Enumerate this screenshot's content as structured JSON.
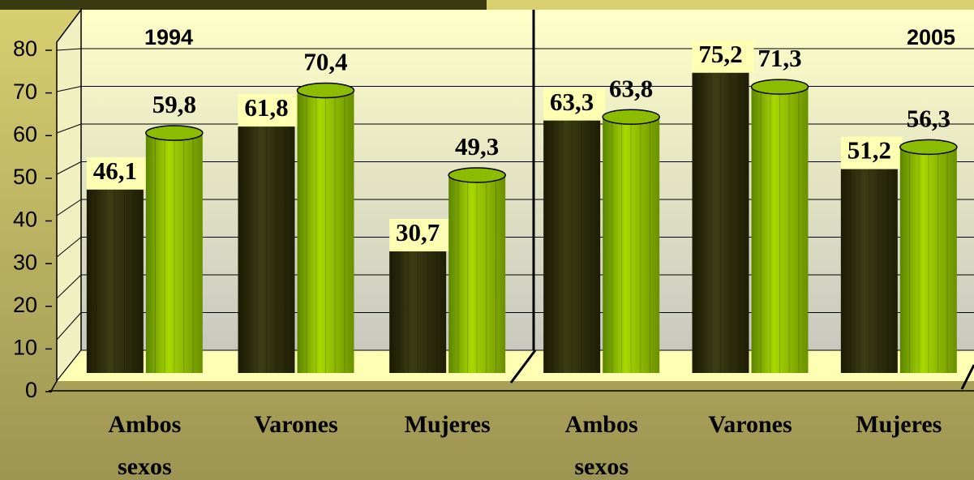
{
  "chart_data": {
    "type": "bar",
    "ylim": [
      0,
      80
    ],
    "yticks": [
      0,
      10,
      20,
      30,
      40,
      50,
      60,
      70,
      80
    ],
    "grid": true,
    "panels": [
      {
        "title": "1994",
        "categories": [
          "Ambos sexos",
          "Varones",
          "Mujeres"
        ],
        "series": [
          {
            "color": "#2e2e0a",
            "values": [
              46.1,
              61.8,
              30.7
            ],
            "value_labels": [
              "46,1",
              "61,8",
              "30,7"
            ]
          },
          {
            "color": "#8cbc00",
            "values": [
              59.8,
              70.4,
              49.3
            ],
            "value_labels": [
              "59,8",
              "70,4",
              "49,3"
            ]
          }
        ]
      },
      {
        "title": "2005",
        "categories": [
          "Ambos sexos",
          "Varones",
          "Mujeres"
        ],
        "series": [
          {
            "color": "#2e2e0a",
            "values": [
              63.3,
              75.2,
              51.2
            ],
            "value_labels": [
              "63,3",
              "75,2",
              "51,2"
            ]
          },
          {
            "color": "#8cbc00",
            "values": [
              63.8,
              71.3,
              56.3
            ],
            "value_labels": [
              "63,8",
              "71,3",
              "56,3"
            ]
          }
        ]
      }
    ]
  }
}
